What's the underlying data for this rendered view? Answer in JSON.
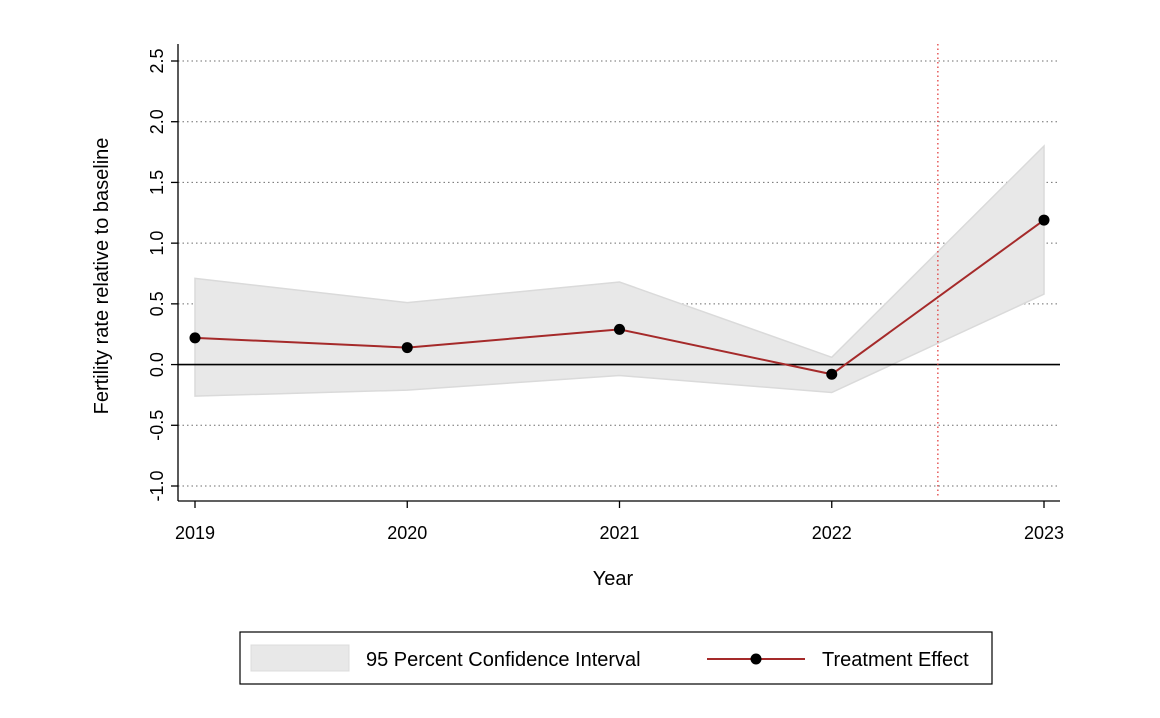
{
  "chart_data": {
    "type": "line",
    "x": [
      2019,
      2020,
      2021,
      2022,
      2023
    ],
    "xlabel": "Year",
    "ylabel": "Fertility rate relative to baseline",
    "xlim": [
      2019,
      2023
    ],
    "ylim": [
      -1.0,
      2.5
    ],
    "yticks": [
      "2.5",
      "2.0",
      "1.5",
      "1.0",
      "0.5",
      "0.0",
      "-0.5",
      "-1.0"
    ],
    "ytick_values": [
      2.5,
      2.0,
      1.5,
      1.0,
      0.5,
      0.0,
      -0.5,
      -1.0
    ],
    "xticks": [
      "2019",
      "2020",
      "2021",
      "2022",
      "2023"
    ],
    "grid": "horizontal dotted",
    "reference_line_y": 0.0,
    "vertical_line_x": 2022.5,
    "series": [
      {
        "name": "Treatment Effect",
        "values": [
          0.22,
          0.14,
          0.29,
          -0.08,
          1.19
        ],
        "color": "#a52a2a",
        "style": "line with markers"
      },
      {
        "name": "95 Percent Confidence Interval",
        "type": "band",
        "lower": [
          -0.26,
          -0.21,
          -0.09,
          -0.23,
          0.58
        ],
        "upper": [
          0.71,
          0.51,
          0.68,
          0.06,
          1.8
        ],
        "color": "#e8e8e8"
      }
    ],
    "legend": {
      "position": "bottom",
      "items": [
        "95 Percent Confidence Interval",
        "Treatment Effect"
      ]
    }
  }
}
